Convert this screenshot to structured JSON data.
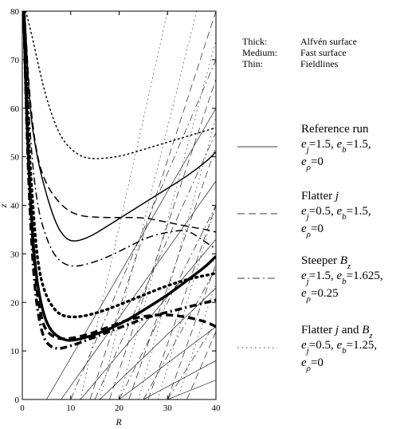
{
  "chart_data": {
    "type": "line",
    "xlabel": "R",
    "ylabel": "z",
    "xlim": [
      0,
      40
    ],
    "ylim": [
      0,
      80
    ],
    "x_ticks": [
      "0",
      "10",
      "20",
      "30",
      "40"
    ],
    "y_ticks": [
      "0",
      "10",
      "20",
      "30",
      "40",
      "50",
      "60",
      "70",
      "80"
    ],
    "line_weight_key": [
      {
        "label": "Thick:",
        "meaning": "Alfvén surface"
      },
      {
        "label": "Medium:",
        "meaning": "Fast surface"
      },
      {
        "label": "Thin:",
        "meaning": "Fieldlines"
      }
    ],
    "runs": [
      {
        "title": "Reference run",
        "params": [
          "e_j=1.5, e_b=1.5,",
          "e_ρ=0"
        ],
        "dash": "solid"
      },
      {
        "title": "Flatter j",
        "params": [
          "e_j=0.5, e_b=1.5,",
          "e_ρ=0"
        ],
        "dash": "dashed"
      },
      {
        "title": "Steeper B_z",
        "params": [
          "e_j=1.5, e_b=1.625,",
          "e_ρ=0.25"
        ],
        "dash": "dashdot"
      },
      {
        "title": "Flatter j and B_z",
        "params": [
          "e_j=0.5, e_b=1.25,",
          "e_ρ=0"
        ],
        "dash": "dotted"
      }
    ],
    "surfaces": [
      {
        "run": 0,
        "kind": "fast",
        "points": [
          [
            0.5,
            80
          ],
          [
            1.5,
            60
          ],
          [
            3,
            50
          ],
          [
            5,
            42
          ],
          [
            7,
            36
          ],
          [
            9,
            33
          ],
          [
            11,
            32.5
          ],
          [
            14,
            33.5
          ],
          [
            18,
            36
          ],
          [
            22,
            38.5
          ],
          [
            26,
            41
          ],
          [
            30,
            43.5
          ],
          [
            34,
            46
          ],
          [
            38,
            49
          ],
          [
            40,
            51
          ]
        ]
      },
      {
        "run": 1,
        "kind": "fast",
        "points": [
          [
            0.5,
            80
          ],
          [
            1.5,
            62
          ],
          [
            3,
            50
          ],
          [
            5,
            44
          ],
          [
            8,
            40
          ],
          [
            11,
            38
          ],
          [
            15,
            37.5
          ],
          [
            20,
            37.5
          ],
          [
            25,
            37.5
          ],
          [
            30,
            36.5
          ],
          [
            35,
            35.5
          ],
          [
            38,
            35
          ],
          [
            40,
            34.5
          ]
        ]
      },
      {
        "run": 2,
        "kind": "fast",
        "points": [
          [
            0.5,
            80
          ],
          [
            1.5,
            55
          ],
          [
            3,
            40
          ],
          [
            5,
            33
          ],
          [
            7,
            29
          ],
          [
            10,
            27.2
          ],
          [
            14,
            28
          ],
          [
            18,
            29.5
          ],
          [
            22,
            31.5
          ],
          [
            26,
            33.5
          ],
          [
            30,
            34.5
          ],
          [
            34,
            35
          ],
          [
            37,
            33
          ],
          [
            40,
            31
          ]
        ]
      },
      {
        "run": 3,
        "kind": "fast",
        "points": [
          [
            0.7,
            80
          ],
          [
            2,
            75
          ],
          [
            3.5,
            68
          ],
          [
            5,
            62
          ],
          [
            7,
            56
          ],
          [
            9,
            52.5
          ],
          [
            12,
            50
          ],
          [
            15,
            49.5
          ],
          [
            20,
            50
          ],
          [
            25,
            51.5
          ],
          [
            30,
            53
          ],
          [
            35,
            54.5
          ],
          [
            40,
            56
          ]
        ]
      },
      {
        "run": 0,
        "kind": "alfven",
        "points": [
          [
            0.3,
            80
          ],
          [
            1,
            55
          ],
          [
            2,
            35
          ],
          [
            3,
            24
          ],
          [
            4.5,
            17
          ],
          [
            6,
            14
          ],
          [
            8,
            12.5
          ],
          [
            10,
            12
          ],
          [
            14,
            13
          ],
          [
            18,
            14.5
          ],
          [
            22,
            16.5
          ],
          [
            26,
            19
          ],
          [
            30,
            21.5
          ],
          [
            34,
            24.5
          ],
          [
            38,
            27.5
          ],
          [
            40,
            29.5
          ]
        ]
      },
      {
        "run": 1,
        "kind": "alfven",
        "points": [
          [
            0.3,
            80
          ],
          [
            1,
            55
          ],
          [
            2,
            34
          ],
          [
            3,
            22
          ],
          [
            4,
            16.5
          ],
          [
            5,
            14
          ],
          [
            7,
            12.5
          ],
          [
            10,
            12.5
          ],
          [
            14,
            13.5
          ],
          [
            18,
            15
          ],
          [
            22,
            16.5
          ],
          [
            26,
            17.3
          ],
          [
            30,
            17.5
          ],
          [
            34,
            17
          ],
          [
            38,
            16
          ],
          [
            40,
            15
          ]
        ]
      },
      {
        "run": 2,
        "kind": "alfven",
        "points": [
          [
            0.3,
            80
          ],
          [
            1,
            52
          ],
          [
            2,
            30
          ],
          [
            3,
            19
          ],
          [
            4,
            14
          ],
          [
            5,
            11.5
          ],
          [
            7,
            10.3
          ],
          [
            10,
            11
          ],
          [
            14,
            12.5
          ],
          [
            18,
            14
          ],
          [
            22,
            15.5
          ],
          [
            26,
            17
          ],
          [
            30,
            18
          ],
          [
            34,
            19
          ],
          [
            38,
            20
          ],
          [
            40,
            20.5
          ]
        ]
      },
      {
        "run": 3,
        "kind": "alfven",
        "points": [
          [
            0.4,
            80
          ],
          [
            1.2,
            55
          ],
          [
            2.5,
            35
          ],
          [
            3.5,
            26
          ],
          [
            5,
            21
          ],
          [
            7,
            18
          ],
          [
            9,
            17
          ],
          [
            12,
            17
          ],
          [
            16,
            18
          ],
          [
            20,
            19.5
          ],
          [
            25,
            21.5
          ],
          [
            30,
            23.5
          ],
          [
            35,
            25
          ],
          [
            40,
            26
          ]
        ]
      }
    ],
    "fieldlines": [
      {
        "run": 0,
        "segments": [
          [
            [
              5,
              0
            ],
            [
              40,
              60
            ]
          ],
          [
            [
              8,
              0
            ],
            [
              40,
              45
            ]
          ],
          [
            [
              12,
              0
            ],
            [
              40,
              33
            ]
          ],
          [
            [
              16,
              0
            ],
            [
              40,
              23
            ]
          ],
          [
            [
              20,
              0
            ],
            [
              40,
              15
            ]
          ],
          [
            [
              25,
              0
            ],
            [
              40,
              8
            ]
          ],
          [
            [
              30,
              0
            ],
            [
              40,
              4
            ]
          ]
        ]
      },
      {
        "run": 1,
        "segments": [
          [
            [
              14,
              0
            ],
            [
              40,
              80
            ]
          ],
          [
            [
              18,
              0
            ],
            [
              40,
              66
            ]
          ],
          [
            [
              22,
              0
            ],
            [
              40,
              52
            ]
          ],
          [
            [
              26,
              0
            ],
            [
              40,
              40
            ]
          ],
          [
            [
              30,
              0
            ],
            [
              40,
              28
            ]
          ],
          [
            [
              34,
              0
            ],
            [
              40,
              14
            ]
          ]
        ]
      },
      {
        "run": 2,
        "segments": [
          [
            [
              10,
              0
            ],
            [
              40,
              70
            ]
          ],
          [
            [
              15,
              0
            ],
            [
              40,
              55
            ]
          ],
          [
            [
              20,
              0
            ],
            [
              40,
              40
            ]
          ],
          [
            [
              25,
              0
            ],
            [
              40,
              27
            ]
          ],
          [
            [
              30,
              0
            ],
            [
              40,
              16
            ]
          ]
        ]
      },
      {
        "run": 3,
        "segments": [
          [
            [
              12,
              0
            ],
            [
              30,
              80
            ]
          ],
          [
            [
              16,
              0
            ],
            [
              36,
              80
            ]
          ],
          [
            [
              20,
              0
            ],
            [
              40,
              74
            ]
          ],
          [
            [
              24,
              0
            ],
            [
              40,
              58
            ]
          ],
          [
            [
              28,
              0
            ],
            [
              40,
              40
            ]
          ],
          [
            [
              32,
              0
            ],
            [
              40,
              24
            ]
          ]
        ]
      }
    ]
  }
}
